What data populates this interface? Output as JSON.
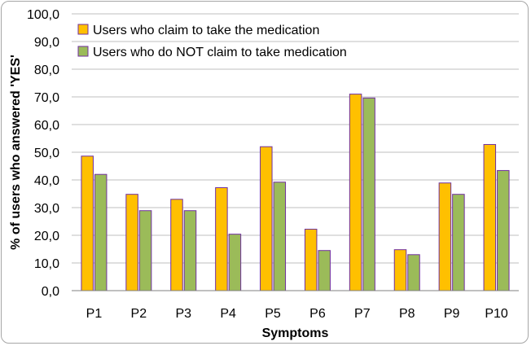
{
  "chart_data": {
    "type": "bar",
    "categories": [
      "P1",
      "P2",
      "P3",
      "P4",
      "P5",
      "P6",
      "P7",
      "P8",
      "P9",
      "P10"
    ],
    "series": [
      {
        "name": "Users who claim to take the medication",
        "values": [
          48.6,
          34.8,
          33.0,
          37.2,
          52.0,
          22.2,
          71.0,
          14.8,
          38.9,
          52.8
        ],
        "color": "#ffc000"
      },
      {
        "name": "Users who do NOT claim to take medication",
        "values": [
          42.0,
          28.9,
          28.9,
          20.4,
          39.2,
          14.5,
          69.6,
          13.0,
          34.8,
          43.4
        ],
        "color": "#9bbb59"
      }
    ],
    "xlabel": "Symptoms",
    "ylabel": "% of users who answered 'YES'",
    "ylim": [
      0,
      100
    ],
    "ytick_labels": [
      "0,0",
      "10,0",
      "20,0",
      "30,0",
      "40,0",
      "50,0",
      "60,0",
      "70,0",
      "80,0",
      "90,0",
      "100,0"
    ],
    "grid": true,
    "legend_position": "top-left",
    "bar_border_color": "#7030a0"
  }
}
